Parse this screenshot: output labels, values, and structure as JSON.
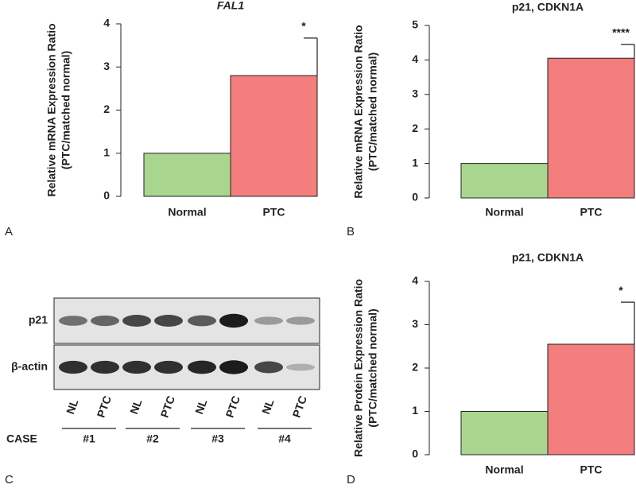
{
  "chart_data": [
    {
      "type": "bar",
      "panel": "A",
      "title": "FAL1",
      "title_italic": true,
      "ylabel": [
        "Relative mRNA Expression Ratio",
        "(PTC/matched normal)"
      ],
      "categories": [
        "Normal",
        "PTC"
      ],
      "values": [
        1,
        2.8
      ],
      "errors": [
        0,
        0.87
      ],
      "colors": [
        "#a9d68f",
        "#f47d7d"
      ],
      "annotation": "*",
      "ylim": [
        0,
        4
      ],
      "yticks": [
        0,
        1,
        2,
        3,
        4
      ]
    },
    {
      "type": "bar",
      "panel": "B",
      "title": "p21, CDKN1A",
      "title_italic": false,
      "ylabel": [
        "Relative mRNA Expression Ratio",
        "(PTC/matched normal)"
      ],
      "categories": [
        "Normal",
        "PTC"
      ],
      "values": [
        1,
        4.05
      ],
      "errors": [
        0,
        0.4
      ],
      "colors": [
        "#a9d68f",
        "#f47d7d"
      ],
      "annotation": "****",
      "ylim": [
        0,
        5
      ],
      "yticks": [
        0,
        1,
        2,
        3,
        4,
        5
      ]
    },
    {
      "type": "bar",
      "panel": "D",
      "title": "p21, CDKN1A",
      "title_italic": false,
      "ylabel": [
        "Relative Protein Expression Ratio",
        "(PTC/matched normal)"
      ],
      "categories": [
        "Normal",
        "PTC"
      ],
      "values": [
        1,
        2.55
      ],
      "errors": [
        0,
        0.97
      ],
      "colors": [
        "#a9d68f",
        "#f47d7d"
      ],
      "annotation": "*",
      "ylim": [
        0,
        4
      ],
      "yticks": [
        0,
        1,
        2,
        3,
        4
      ]
    }
  ],
  "blot": {
    "panel": "C",
    "rows": [
      "p21",
      "β-actin"
    ],
    "lanes": [
      "NL",
      "PTC",
      "NL",
      "PTC",
      "NL",
      "PTC",
      "NL",
      "PTC"
    ],
    "case_label": "CASE",
    "cases": [
      "#1",
      "#2",
      "#3",
      "#4"
    ]
  }
}
